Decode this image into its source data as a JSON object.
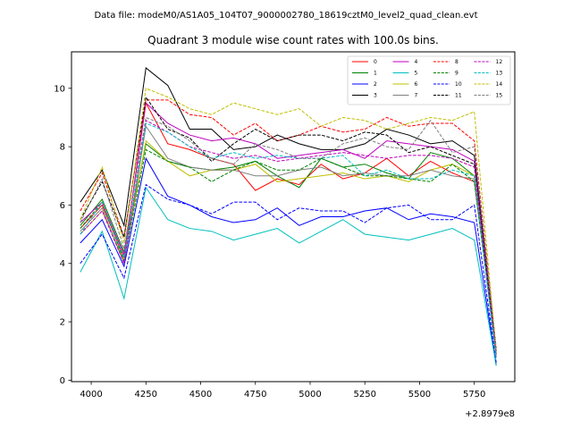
{
  "figure": {
    "suptitle": "Data file: modeM0/AS1A05_104T07_9000002780_18619cztM0_level2_quad_clean.evt",
    "title": "Quadrant 3 module wise count rates with 100.0s bins.",
    "x_offset_label": "+2.8979e8"
  },
  "chart_data": {
    "type": "line",
    "title": "Quadrant 3 module wise count rates with 100.0s bins.",
    "xlabel": "",
    "ylabel": "",
    "x_offset": "+2.8979e8",
    "xlim": [
      3910,
      5935
    ],
    "ylim": [
      -0.05,
      11.25
    ],
    "xticks": [
      4000,
      4250,
      4500,
      4750,
      5000,
      5250,
      5500,
      5750
    ],
    "yticks": [
      0,
      2,
      4,
      6,
      8,
      10
    ],
    "grid": false,
    "legend_placement": "top-right",
    "legend_columns": 4,
    "x": [
      3950,
      4050,
      4150,
      4250,
      4350,
      4450,
      4550,
      4650,
      4750,
      4850,
      4950,
      5050,
      5150,
      5250,
      5350,
      5450,
      5550,
      5650,
      5750,
      5850
    ],
    "series": [
      {
        "name": "0",
        "color": "#ff0000",
        "dashed": false,
        "values": [
          5.2,
          6.0,
          4.2,
          9.5,
          8.1,
          7.9,
          7.6,
          7.4,
          6.5,
          6.9,
          6.7,
          7.4,
          6.9,
          7.1,
          7.6,
          7.0,
          7.5,
          7.1,
          6.8,
          1.0
        ]
      },
      {
        "name": "1",
        "color": "#008000",
        "dashed": false,
        "values": [
          5.3,
          6.2,
          4.4,
          8.1,
          7.5,
          7.3,
          7.2,
          7.3,
          7.5,
          7.0,
          6.6,
          7.6,
          7.3,
          7.4,
          7.1,
          6.9,
          7.8,
          7.6,
          7.0,
          1.0
        ]
      },
      {
        "name": "2",
        "color": "#0000ff",
        "dashed": false,
        "values": [
          4.7,
          5.5,
          3.9,
          7.6,
          6.3,
          6.0,
          5.6,
          5.4,
          5.5,
          5.9,
          5.3,
          5.6,
          5.6,
          5.8,
          5.9,
          5.5,
          5.7,
          5.6,
          5.4,
          0.5
        ]
      },
      {
        "name": "3",
        "color": "#000000",
        "dashed": false,
        "values": [
          6.1,
          7.2,
          5.3,
          10.7,
          10.1,
          8.6,
          8.6,
          7.9,
          8.0,
          8.4,
          8.1,
          7.9,
          7.9,
          8.1,
          8.6,
          8.4,
          8.1,
          8.2,
          7.7,
          1.0
        ]
      },
      {
        "name": "4",
        "color": "#bf00bf",
        "dashed": false,
        "values": [
          5.4,
          6.1,
          4.3,
          9.5,
          8.8,
          8.4,
          8.2,
          8.3,
          8.1,
          7.6,
          7.7,
          7.8,
          7.9,
          7.6,
          8.2,
          8.1,
          8.0,
          7.9,
          7.5,
          0.9
        ]
      },
      {
        "name": "5",
        "color": "#00bfbf",
        "dashed": false,
        "values": [
          3.7,
          5.1,
          2.8,
          6.6,
          5.5,
          5.2,
          5.1,
          4.8,
          5.0,
          5.2,
          4.7,
          5.1,
          5.5,
          5.0,
          4.9,
          4.8,
          5.0,
          5.2,
          4.8,
          0.5
        ]
      },
      {
        "name": "6",
        "color": "#bfbf00",
        "dashed": false,
        "values": [
          5.0,
          5.8,
          4.1,
          8.2,
          7.5,
          7.0,
          7.2,
          7.2,
          7.4,
          6.8,
          6.9,
          7.0,
          7.1,
          6.9,
          7.0,
          6.8,
          7.2,
          7.4,
          7.0,
          0.9
        ]
      },
      {
        "name": "7",
        "color": "#808080",
        "dashed": false,
        "values": [
          5.1,
          5.9,
          4.0,
          8.7,
          7.6,
          7.3,
          7.2,
          7.2,
          7.0,
          7.0,
          7.2,
          7.3,
          7.0,
          7.1,
          7.0,
          7.0,
          7.2,
          7.0,
          6.9,
          0.9
        ]
      },
      {
        "name": "8",
        "color": "#ff0000",
        "dashed": true,
        "values": [
          5.8,
          7.1,
          4.9,
          9.6,
          9.6,
          9.1,
          9.0,
          8.4,
          8.8,
          8.2,
          8.4,
          8.7,
          8.5,
          8.6,
          9.0,
          8.7,
          8.8,
          8.8,
          8.2,
          1.1
        ]
      },
      {
        "name": "9",
        "color": "#008000",
        "dashed": true,
        "values": [
          5.2,
          6.1,
          4.1,
          7.9,
          7.5,
          7.3,
          6.8,
          7.2,
          7.5,
          7.2,
          7.2,
          7.6,
          7.3,
          7.0,
          7.0,
          6.9,
          6.8,
          7.4,
          6.8,
          0.9
        ]
      },
      {
        "name": "10",
        "color": "#0000ff",
        "dashed": true,
        "values": [
          4.0,
          5.0,
          3.5,
          6.7,
          6.2,
          6.0,
          5.7,
          6.1,
          6.1,
          5.5,
          5.9,
          5.8,
          5.8,
          5.4,
          5.9,
          6.0,
          5.5,
          5.5,
          6.0,
          0.6
        ]
      },
      {
        "name": "11",
        "color": "#000000",
        "dashed": true,
        "values": [
          5.5,
          6.8,
          4.9,
          9.7,
          8.6,
          8.3,
          7.5,
          8.1,
          8.6,
          8.2,
          8.4,
          8.4,
          8.2,
          8.5,
          8.4,
          7.8,
          8.0,
          7.7,
          7.4,
          1.0
        ]
      },
      {
        "name": "12",
        "color": "#bf00bf",
        "dashed": true,
        "values": [
          5.0,
          5.8,
          4.0,
          8.9,
          8.5,
          8.0,
          7.8,
          7.6,
          7.7,
          7.5,
          7.6,
          7.7,
          7.8,
          7.7,
          7.6,
          7.7,
          7.7,
          7.6,
          7.3,
          0.8
        ]
      },
      {
        "name": "13",
        "color": "#00bfbf",
        "dashed": true,
        "values": [
          5.0,
          6.1,
          4.2,
          8.8,
          8.5,
          8.0,
          7.6,
          7.8,
          7.6,
          7.7,
          7.6,
          7.6,
          7.7,
          7.0,
          7.2,
          6.9,
          6.9,
          7.2,
          7.0,
          0.7
        ]
      },
      {
        "name": "14",
        "color": "#bfbf00",
        "dashed": true,
        "values": [
          5.5,
          7.3,
          4.7,
          10.0,
          9.7,
          9.3,
          9.1,
          9.5,
          9.3,
          9.1,
          9.3,
          8.7,
          9.0,
          8.9,
          8.6,
          8.8,
          9.0,
          8.9,
          9.2,
          1.0
        ]
      },
      {
        "name": "15",
        "color": "#808080",
        "dashed": true,
        "values": [
          5.4,
          6.9,
          4.5,
          9.0,
          8.7,
          8.2,
          7.6,
          7.4,
          8.1,
          7.9,
          7.6,
          7.6,
          8.1,
          8.3,
          8.0,
          7.9,
          8.9,
          7.8,
          8.0,
          1.0
        ]
      }
    ]
  }
}
